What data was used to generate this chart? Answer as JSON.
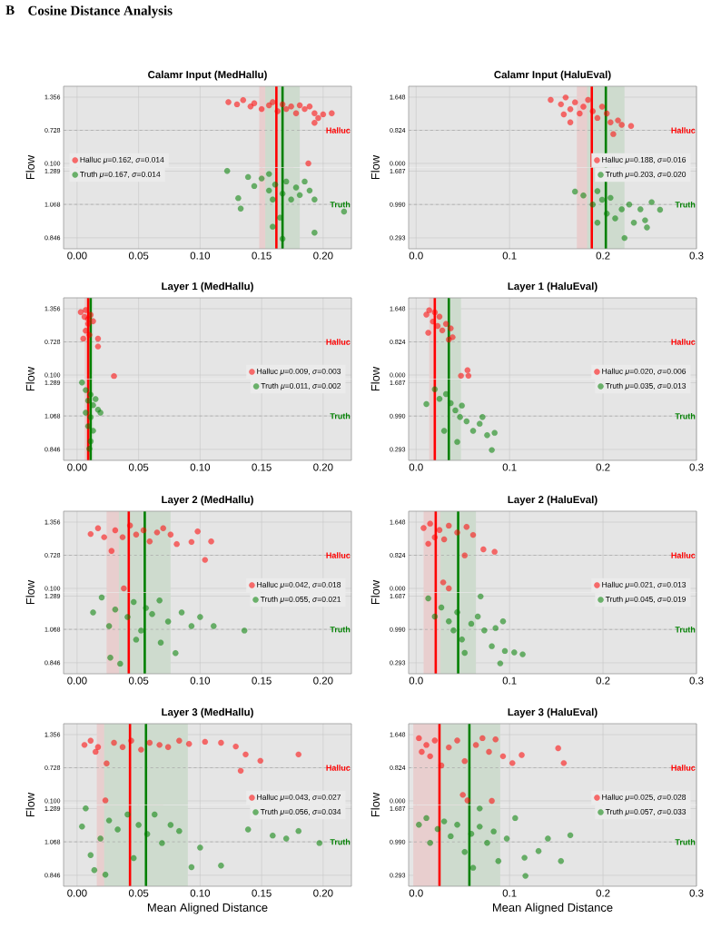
{
  "chart_data": [
    {
      "type": "scatter",
      "title": "Calamr Input (MedHallu)",
      "ylabel": "Flow",
      "annotations": [
        "B",
        "Cosine Distance Analysis"
      ],
      "series": [
        {
          "name": "Halluc *μ*=0.162, *σ*=0.014",
          "color": "#ff0000",
          "x": [
            0.123,
            0.13,
            0.135,
            0.141,
            0.144,
            0.15,
            0.156,
            0.159,
            0.163,
            0.167,
            0.17,
            0.174,
            0.178,
            0.181,
            0.185,
            0.189,
            0.193,
            0.196,
            0.2,
            0.207,
            0.193,
            0.188
          ],
          "values": [
            1.26,
            1.22,
            1.3,
            1.18,
            1.24,
            1.13,
            1.2,
            1.26,
            1.09,
            1.22,
            1.13,
            1.18,
            1.05,
            1.2,
            1.13,
            1.18,
            1.05,
            0.96,
            1.03,
            1.05,
            0.87,
            0.1
          ]
        }
      ],
      "xlim": [
        -0.011,
        0.223
      ],
      "ylim": [
        0.023,
        1.562
      ],
      "tick_labels": "y",
      "xticks": [
        0,
        0.05,
        0.1,
        0.15,
        0.2
      ],
      "yticks": [
        1.356,
        0.728,
        {
          "value": 0.1,
          "label": "0.100"
        }
      ],
      "bands": [
        {
          "axis": "x",
          "from": 0.148,
          "to": 0.176,
          "color": "#e8cece"
        },
        {
          "axis": "x",
          "from": 0.153,
          "to": 0.181,
          "color": "#cedbce"
        }
      ],
      "ref_lines": [
        {
          "axis": "y",
          "value": 0.728,
          "label": "Halluc",
          "line_style": "dashed"
        },
        {
          "axis": "x",
          "value": 0.167,
          "color": "#008000"
        },
        {
          "axis": "x",
          "value": 0.162,
          "color": "#ff0000"
        }
      ],
      "legend": "bottom left",
      "grid": true,
      "marker": "circle"
    },
    {
      "type": "scatter",
      "series": [
        {
          "name": "Truth *μ*=0.167, *σ*=0.014",
          "color": "#008000",
          "x": [
            0.122,
            0.131,
            0.133,
            0.139,
            0.144,
            0.15,
            0.156,
            0.159,
            0.161,
            0.165,
            0.167,
            0.17,
            0.174,
            0.178,
            0.181,
            0.185,
            0.189,
            0.193,
            0.193,
            0.159,
            0.167,
            0.217,
            0.156
          ],
          "values": [
            1.29,
            1.11,
            1.04,
            1.25,
            1.19,
            1.24,
            1.16,
            1.1,
            1.2,
            0.98,
            1.14,
            1.22,
            1.1,
            1.18,
            1.13,
            1.22,
            1.16,
            1.1,
            0.88,
            0.92,
            0.84,
            1.02,
            1.27
          ]
        }
      ],
      "xlim": [
        -0.011,
        0.223
      ],
      "ylim": [
        0.773,
        1.313
      ],
      "xticks": [
        {
          "value": 0,
          "label": "0.00"
        },
        0.05,
        {
          "value": 0.1,
          "label": "0.10"
        },
        0.15,
        {
          "value": 0.2,
          "label": "0.20"
        }
      ],
      "yticks": [
        1.289,
        1.068,
        0.846
      ],
      "bands": [
        {
          "axis": "x",
          "from": 0.148,
          "to": 0.176,
          "color": "#e8cece"
        },
        {
          "axis": "x",
          "from": 0.153,
          "to": 0.181,
          "color": "#cedbce"
        }
      ],
      "ref_lines": [
        {
          "axis": "y",
          "value": 1.068,
          "label": "Truth",
          "line_style": "dashed"
        },
        {
          "axis": "x",
          "value": 0.167,
          "color": "#008000"
        },
        {
          "axis": "x",
          "value": 0.162,
          "color": "#ff0000"
        }
      ],
      "legend": "top left",
      "grid": true,
      "marker": "circle"
    },
    {
      "type": "scatter",
      "title": "Calamr Input (HaluEval)",
      "ylabel": "Flow",
      "series": [
        {
          "name": "Halluc *μ*=0.188, *σ*=0.016",
          "color": "#ff0000",
          "x": [
            0.144,
            0.155,
            0.16,
            0.165,
            0.17,
            0.175,
            0.179,
            0.184,
            0.189,
            0.194,
            0.199,
            0.204,
            0.208,
            0.211,
            0.216,
            0.22,
            0.23,
            0.165,
            0.158
          ],
          "values": [
            1.58,
            1.47,
            1.64,
            1.35,
            1.52,
            1.24,
            1.41,
            1.58,
            1.3,
            1.13,
            1.41,
            1.24,
            1.02,
            0.73,
            1.07,
            0.96,
            0.93,
            1.02,
            1.22
          ]
        }
      ],
      "xlim": [
        -0.008,
        0.3
      ],
      "ylim": [
        -0.102,
        1.919
      ],
      "tick_labels": "y",
      "xticks": [
        0,
        0.1,
        0.2,
        0.3
      ],
      "yticks": [
        1.648,
        0.824,
        {
          "value": 0,
          "label": "0.000"
        }
      ],
      "bands": [
        {
          "axis": "x",
          "from": 0.172,
          "to": 0.204,
          "color": "#e8cece"
        },
        {
          "axis": "x",
          "from": 0.183,
          "to": 0.223,
          "color": "#cedbce"
        }
      ],
      "ref_lines": [
        {
          "axis": "y",
          "value": 0.824,
          "label": "Halluc",
          "line_style": "dashed"
        },
        {
          "axis": "x",
          "value": 0.203,
          "color": "#008000"
        },
        {
          "axis": "x",
          "value": 0.188,
          "color": "#ff0000"
        }
      ],
      "legend": "bottom right",
      "grid": true,
      "marker": "circle"
    },
    {
      "type": "scatter",
      "series": [
        {
          "name": "Truth *μ*=0.203, *σ*=0.020",
          "color": "#008000",
          "x": [
            0.17,
            0.179,
            0.189,
            0.194,
            0.199,
            0.204,
            0.208,
            0.213,
            0.22,
            0.228,
            0.233,
            0.24,
            0.245,
            0.247,
            0.252,
            0.261,
            0.223,
            0.194
          ],
          "values": [
            1.26,
            1.18,
            0.99,
            1.27,
            1.09,
            0.8,
            1.13,
            0.7,
            0.89,
            0.99,
            0.61,
            0.89,
            0.66,
            0.51,
            1.04,
            0.88,
            0.29,
            0.61
          ]
        }
      ],
      "xlim": [
        -0.008,
        0.3
      ],
      "ylim": [
        0.064,
        1.763
      ],
      "xticks": [
        {
          "value": 0,
          "label": "0.0"
        },
        0.1,
        0.2,
        0.3
      ],
      "yticks": [
        1.687,
        {
          "value": 0.99,
          "label": "0.990"
        },
        0.293
      ],
      "bands": [
        {
          "axis": "x",
          "from": 0.172,
          "to": 0.204,
          "color": "#e8cece"
        },
        {
          "axis": "x",
          "from": 0.183,
          "to": 0.223,
          "color": "#cedbce"
        }
      ],
      "ref_lines": [
        {
          "axis": "y",
          "value": 0.99,
          "label": "Truth",
          "line_style": "dashed"
        },
        {
          "axis": "x",
          "value": 0.203,
          "color": "#008000"
        },
        {
          "axis": "x",
          "value": 0.188,
          "color": "#ff0000"
        }
      ],
      "legend": "top right",
      "grid": true,
      "marker": "circle"
    },
    {
      "type": "scatter",
      "title": "Layer 1 (MedHallu)",
      "ylabel": "Flow",
      "series": [
        {
          "name": "Halluc *μ*=0.009, *σ*=0.003",
          "color": "#ff0000",
          "x": [
            0.003,
            0.006,
            0.007,
            0.009,
            0.011,
            0.013,
            0.007,
            0.01,
            0.005,
            0.009,
            0.017,
            0.017,
            0.03
          ],
          "values": [
            1.29,
            1.2,
            1.33,
            1.07,
            1.24,
            1.12,
            0.94,
            0.86,
            0.79,
            1.16,
            0.79,
            0.64,
            0.08
          ]
        }
      ],
      "xlim": [
        -0.011,
        0.223
      ],
      "ylim": [
        0.023,
        1.562
      ],
      "tick_labels": "y",
      "xticks": [
        0,
        0.05,
        0.1,
        0.15,
        0.2
      ],
      "yticks": [
        1.356,
        0.728,
        {
          "value": 0.1,
          "label": "0.100"
        }
      ],
      "bands": [
        {
          "axis": "x",
          "from": 0.006,
          "to": 0.012,
          "color": "#e8cece"
        },
        {
          "axis": "x",
          "from": 0.009,
          "to": 0.013,
          "color": "#cedbce"
        }
      ],
      "ref_lines": [
        {
          "axis": "y",
          "value": 0.728,
          "label": "Halluc",
          "line_style": "dashed"
        },
        {
          "axis": "x",
          "value": 0.011,
          "color": "#008000"
        },
        {
          "axis": "x",
          "value": 0.009,
          "color": "#ff0000"
        }
      ],
      "legend": "bottom right",
      "grid": true,
      "marker": "circle"
    },
    {
      "type": "scatter",
      "series": [
        {
          "name": "Truth *μ*=0.011, *σ*=0.002",
          "color": "#008000",
          "x": [
            0.004,
            0.007,
            0.011,
            0.009,
            0.013,
            0.015,
            0.007,
            0.019,
            0.011,
            0.009,
            0.013,
            0.011,
            0.01,
            0.017
          ],
          "values": [
            1.29,
            1.24,
            1.21,
            1.17,
            1.14,
            1.18,
            1.09,
            1.09,
            1.06,
            1.0,
            0.97,
            0.9,
            0.85,
            1.11
          ]
        }
      ],
      "xlim": [
        -0.011,
        0.223
      ],
      "ylim": [
        0.773,
        1.313
      ],
      "xticks": [
        {
          "value": 0,
          "label": "0.00"
        },
        0.05,
        {
          "value": 0.1,
          "label": "0.10"
        },
        0.15,
        {
          "value": 0.2,
          "label": "0.20"
        }
      ],
      "yticks": [
        1.289,
        1.068,
        0.846
      ],
      "bands": [
        {
          "axis": "x",
          "from": 0.006,
          "to": 0.012,
          "color": "#e8cece"
        },
        {
          "axis": "x",
          "from": 0.009,
          "to": 0.013,
          "color": "#cedbce"
        }
      ],
      "ref_lines": [
        {
          "axis": "y",
          "value": 1.068,
          "label": "Truth",
          "line_style": "dashed"
        },
        {
          "axis": "x",
          "value": 0.011,
          "color": "#008000"
        },
        {
          "axis": "x",
          "value": 0.009,
          "color": "#ff0000"
        }
      ],
      "legend": "top right",
      "grid": true,
      "marker": "circle"
    },
    {
      "type": "scatter",
      "title": "Layer 1 (HaluEval)",
      "ylabel": "Flow",
      "series": [
        {
          "name": "Halluc *μ*=0.020, *σ*=0.006",
          "color": "#ff0000",
          "x": [
            0.011,
            0.014,
            0.018,
            0.02,
            0.023,
            0.025,
            0.028,
            0.032,
            0.037,
            0.039,
            0.013,
            0.035,
            0.048,
            0.055,
            0.056
          ],
          "values": [
            1.5,
            1.61,
            1.33,
            1.56,
            1.22,
            1.45,
            1.11,
            1.27,
            1.16,
            0.94,
            1.05,
            0.88,
            -0.02,
            0.12,
            -0.02
          ]
        }
      ],
      "xlim": [
        -0.008,
        0.3
      ],
      "ylim": [
        -0.102,
        1.919
      ],
      "tick_labels": "y",
      "xticks": [
        0,
        0.1,
        0.2,
        0.3
      ],
      "yticks": [
        1.648,
        0.824,
        {
          "value": 0,
          "label": "0.000"
        }
      ],
      "bands": [
        {
          "axis": "x",
          "from": 0.014,
          "to": 0.026,
          "color": "#e8cece"
        },
        {
          "axis": "x",
          "from": 0.022,
          "to": 0.048,
          "color": "#cedbce"
        }
      ],
      "ref_lines": [
        {
          "axis": "y",
          "value": 0.824,
          "label": "Halluc",
          "line_style": "dashed"
        },
        {
          "axis": "x",
          "value": 0.035,
          "color": "#008000"
        },
        {
          "axis": "x",
          "value": 0.02,
          "color": "#ff0000"
        }
      ],
      "legend": "bottom right",
      "grid": true,
      "marker": "circle"
    },
    {
      "type": "scatter",
      "series": [
        {
          "name": "Truth *μ*=0.035, *σ*=0.013",
          "color": "#008000",
          "x": [
            0.011,
            0.02,
            0.025,
            0.032,
            0.037,
            0.042,
            0.047,
            0.049,
            0.054,
            0.061,
            0.068,
            0.071,
            0.076,
            0.081,
            0.084,
            0.03,
            0.044
          ],
          "values": [
            1.24,
            1.55,
            1.35,
            1.45,
            1.26,
            1.11,
            0.97,
            1.21,
            0.88,
            0.68,
            0.83,
            0.97,
            0.59,
            0.28,
            0.64,
            0.68,
            0.45
          ]
        }
      ],
      "xlim": [
        -0.008,
        0.3
      ],
      "ylim": [
        0.064,
        1.763
      ],
      "xticks": [
        {
          "value": 0,
          "label": "0.0"
        },
        0.1,
        0.2,
        0.3
      ],
      "yticks": [
        1.687,
        {
          "value": 0.99,
          "label": "0.990"
        },
        0.293
      ],
      "bands": [
        {
          "axis": "x",
          "from": 0.014,
          "to": 0.026,
          "color": "#e8cece"
        },
        {
          "axis": "x",
          "from": 0.022,
          "to": 0.048,
          "color": "#cedbce"
        }
      ],
      "ref_lines": [
        {
          "axis": "y",
          "value": 0.99,
          "label": "Truth",
          "line_style": "dashed"
        },
        {
          "axis": "x",
          "value": 0.035,
          "color": "#008000"
        },
        {
          "axis": "x",
          "value": 0.02,
          "color": "#ff0000"
        }
      ],
      "legend": "top right",
      "grid": true,
      "marker": "circle"
    },
    {
      "type": "scatter",
      "title": "Layer 2 (MedHallu)",
      "ylabel": "Flow",
      "series": [
        {
          "name": "Halluc *μ*=0.042, *σ*=0.018",
          "color": "#ff0000",
          "x": [
            0.011,
            0.017,
            0.022,
            0.028,
            0.031,
            0.037,
            0.043,
            0.048,
            0.054,
            0.059,
            0.065,
            0.07,
            0.076,
            0.081,
            0.093,
            0.098,
            0.109,
            0.104,
            0.038
          ],
          "values": [
            1.13,
            1.24,
            1.07,
            0.81,
            1.2,
            1.07,
            1.29,
            1.12,
            1.2,
            0.99,
            1.16,
            1.24,
            1.12,
            0.94,
            0.98,
            1.18,
            0.99,
            0.64,
            0.1
          ]
        }
      ],
      "xlim": [
        -0.011,
        0.223
      ],
      "ylim": [
        0.023,
        1.562
      ],
      "tick_labels": "y",
      "xticks": [
        0,
        0.05,
        0.1,
        0.15,
        0.2
      ],
      "yticks": [
        1.356,
        0.728,
        {
          "value": 0.1,
          "label": "0.100"
        }
      ],
      "bands": [
        {
          "axis": "x",
          "from": 0.024,
          "to": 0.06,
          "color": "#e8cece"
        },
        {
          "axis": "x",
          "from": 0.034,
          "to": 0.076,
          "color": "#cedbce"
        }
      ],
      "ref_lines": [
        {
          "axis": "y",
          "value": 0.728,
          "label": "Halluc",
          "line_style": "dashed"
        },
        {
          "axis": "x",
          "value": 0.055,
          "color": "#008000"
        },
        {
          "axis": "x",
          "value": 0.042,
          "color": "#ff0000"
        }
      ],
      "legend": "bottom right",
      "grid": true,
      "marker": "circle"
    },
    {
      "type": "scatter",
      "series": [
        {
          "name": "Truth *μ*=0.055, *σ*=0.021",
          "color": "#008000",
          "x": [
            0.013,
            0.02,
            0.026,
            0.027,
            0.031,
            0.035,
            0.041,
            0.046,
            0.052,
            0.056,
            0.061,
            0.067,
            0.068,
            0.074,
            0.08,
            0.085,
            0.093,
            0.1,
            0.111,
            0.136,
            0.048
          ],
          "values": [
            1.18,
            1.28,
            1.09,
            0.88,
            1.2,
            0.84,
            1.15,
            1.25,
            1.06,
            1.21,
            1.17,
            1.26,
            0.98,
            1.12,
            0.91,
            1.18,
            1.09,
            1.15,
            1.09,
            1.06,
            1.0
          ]
        }
      ],
      "xlim": [
        -0.011,
        0.223
      ],
      "ylim": [
        0.773,
        1.313
      ],
      "xticks": [
        {
          "value": 0,
          "label": "0.00"
        },
        0.05,
        {
          "value": 0.1,
          "label": "0.10"
        },
        0.15,
        {
          "value": 0.2,
          "label": "0.20"
        }
      ],
      "yticks": [
        1.289,
        1.068,
        0.846
      ],
      "bands": [
        {
          "axis": "x",
          "from": 0.024,
          "to": 0.06,
          "color": "#e8cece"
        },
        {
          "axis": "x",
          "from": 0.034,
          "to": 0.076,
          "color": "#cedbce"
        }
      ],
      "ref_lines": [
        {
          "axis": "y",
          "value": 1.068,
          "label": "Truth",
          "line_style": "dashed"
        },
        {
          "axis": "x",
          "value": 0.055,
          "color": "#008000"
        },
        {
          "axis": "x",
          "value": 0.042,
          "color": "#ff0000"
        }
      ],
      "legend": "top right",
      "grid": true,
      "marker": "circle"
    },
    {
      "type": "scatter",
      "title": "Layer 2 (HaluEval)",
      "ylabel": "Flow",
      "series": [
        {
          "name": "Halluc *μ*=0.021, *σ*=0.013",
          "color": "#ff0000",
          "x": [
            0.008,
            0.013,
            0.015,
            0.02,
            0.025,
            0.03,
            0.035,
            0.044,
            0.054,
            0.061,
            0.052,
            0.072,
            0.084,
            0.035,
            0.029
          ],
          "values": [
            1.5,
            1.11,
            1.61,
            1.27,
            1.45,
            1.22,
            1.56,
            1.39,
            1.53,
            1.33,
            0.82,
            0.97,
            0.91,
            0.0,
            0.15
          ]
        }
      ],
      "xlim": [
        -0.008,
        0.3
      ],
      "ylim": [
        -0.102,
        1.919
      ],
      "tick_labels": "y",
      "xticks": [
        0,
        0.1,
        0.2,
        0.3
      ],
      "yticks": [
        1.648,
        0.824,
        {
          "value": 0,
          "label": "0.000"
        }
      ],
      "bands": [
        {
          "axis": "x",
          "from": 0.008,
          "to": 0.034,
          "color": "#e8cece"
        },
        {
          "axis": "x",
          "from": 0.026,
          "to": 0.064,
          "color": "#cedbce"
        }
      ],
      "ref_lines": [
        {
          "axis": "y",
          "value": 0.824,
          "label": "Halluc",
          "line_style": "dashed"
        },
        {
          "axis": "x",
          "value": 0.045,
          "color": "#008000"
        },
        {
          "axis": "x",
          "value": 0.021,
          "color": "#ff0000"
        }
      ],
      "legend": "bottom right",
      "grid": true,
      "marker": "circle"
    },
    {
      "type": "scatter",
      "series": [
        {
          "name": "Truth *μ*=0.045, *σ*=0.019",
          "color": "#008000",
          "x": [
            0.013,
            0.02,
            0.027,
            0.035,
            0.04,
            0.044,
            0.049,
            0.052,
            0.059,
            0.066,
            0.069,
            0.073,
            0.081,
            0.085,
            0.093,
            0.095,
            0.105,
            0.114,
            0.09
          ],
          "values": [
            1.64,
            1.26,
            1.45,
            1.16,
            0.97,
            1.35,
            0.78,
            0.5,
            1.11,
            1.26,
            1.68,
            0.97,
            0.64,
            1.02,
            1.16,
            0.54,
            0.51,
            0.47,
            0.28
          ]
        }
      ],
      "xlim": [
        -0.008,
        0.3
      ],
      "ylim": [
        0.064,
        1.763
      ],
      "xticks": [
        {
          "value": 0,
          "label": "0.0"
        },
        0.1,
        0.2,
        0.3
      ],
      "yticks": [
        1.687,
        {
          "value": 0.99,
          "label": "0.990"
        },
        0.293
      ],
      "bands": [
        {
          "axis": "x",
          "from": 0.008,
          "to": 0.034,
          "color": "#e8cece"
        },
        {
          "axis": "x",
          "from": 0.026,
          "to": 0.064,
          "color": "#cedbce"
        }
      ],
      "ref_lines": [
        {
          "axis": "y",
          "value": 0.99,
          "label": "Truth",
          "line_style": "dashed"
        },
        {
          "axis": "x",
          "value": 0.045,
          "color": "#008000"
        },
        {
          "axis": "x",
          "value": 0.021,
          "color": "#ff0000"
        }
      ],
      "legend": "top right",
      "grid": true,
      "marker": "circle"
    },
    {
      "type": "scatter",
      "title": "Layer 3 (MedHallu)",
      "ylabel": "Flow",
      "series": [
        {
          "name": "Halluc *μ*=0.043, *σ*=0.027",
          "color": "#ff0000",
          "x": [
            0.006,
            0.011,
            0.015,
            0.017,
            0.024,
            0.03,
            0.037,
            0.044,
            0.052,
            0.059,
            0.067,
            0.074,
            0.083,
            0.091,
            0.104,
            0.117,
            0.129,
            0.137,
            0.133,
            0.149,
            0.18,
            0.023
          ],
          "values": [
            1.16,
            1.24,
            1.03,
            1.12,
            0.81,
            1.2,
            1.12,
            1.24,
            1.07,
            1.2,
            1.16,
            1.12,
            1.24,
            1.18,
            1.22,
            1.2,
            1.13,
            0.98,
            0.67,
            0.86,
            0.98,
            0.11
          ]
        }
      ],
      "xlim": [
        -0.011,
        0.223
      ],
      "ylim": [
        0.023,
        1.562
      ],
      "tick_labels": "y",
      "xticks": [
        0,
        0.05,
        0.1,
        0.15,
        0.2
      ],
      "yticks": [
        1.356,
        0.728,
        {
          "value": 0.1,
          "label": "0.100"
        }
      ],
      "bands": [
        {
          "axis": "x",
          "from": 0.016,
          "to": 0.07,
          "color": "#e8cece"
        },
        {
          "axis": "x",
          "from": 0.022,
          "to": 0.09,
          "color": "#cedbce"
        }
      ],
      "ref_lines": [
        {
          "axis": "y",
          "value": 0.728,
          "label": "Halluc",
          "line_style": "dashed"
        },
        {
          "axis": "x",
          "value": 0.056,
          "color": "#008000"
        },
        {
          "axis": "x",
          "value": 0.043,
          "color": "#ff0000"
        }
      ],
      "legend": "bottom right",
      "grid": true,
      "marker": "circle"
    },
    {
      "type": "scatter",
      "xlabel": "Mean Aligned Distance",
      "series": [
        {
          "name": "Truth *μ*=0.056, *σ*=0.034",
          "color": "#008000",
          "x": [
            0.004,
            0.007,
            0.011,
            0.014,
            0.019,
            0.023,
            0.026,
            0.033,
            0.041,
            0.046,
            0.05,
            0.057,
            0.063,
            0.069,
            0.076,
            0.083,
            0.093,
            0.1,
            0.117,
            0.139,
            0.159,
            0.17,
            0.18,
            0.197
          ],
          "values": [
            1.17,
            1.29,
            0.98,
            0.88,
            1.09,
            0.85,
            1.21,
            1.15,
            1.25,
            0.96,
            1.18,
            1.12,
            1.25,
            1.06,
            1.18,
            1.14,
            0.9,
            1.03,
            0.91,
            1.15,
            1.11,
            1.09,
            1.14,
            1.06
          ]
        }
      ],
      "xlim": [
        -0.011,
        0.223
      ],
      "ylim": [
        0.773,
        1.313
      ],
      "xticks": [
        {
          "value": 0,
          "label": "0.00"
        },
        0.05,
        {
          "value": 0.1,
          "label": "0.10"
        },
        0.15,
        {
          "value": 0.2,
          "label": "0.20"
        }
      ],
      "yticks": [
        1.289,
        1.068,
        0.846
      ],
      "bands": [
        {
          "axis": "x",
          "from": 0.016,
          "to": 0.07,
          "color": "#e8cece"
        },
        {
          "axis": "x",
          "from": 0.022,
          "to": 0.09,
          "color": "#cedbce"
        }
      ],
      "ref_lines": [
        {
          "axis": "y",
          "value": 1.068,
          "label": "Truth",
          "line_style": "dashed"
        },
        {
          "axis": "x",
          "value": 0.056,
          "color": "#008000"
        },
        {
          "axis": "x",
          "value": 0.043,
          "color": "#ff0000"
        }
      ],
      "legend": "top right",
      "grid": true,
      "marker": "circle"
    },
    {
      "type": "scatter",
      "title": "Layer 3 (HaluEval)",
      "ylabel": "Flow",
      "series": [
        {
          "name": "Halluc *μ*=0.025, *σ*=0.028",
          "color": "#ff0000",
          "x": [
            0.003,
            0.006,
            0.011,
            0.015,
            0.02,
            0.027,
            0.035,
            0.044,
            0.052,
            0.064,
            0.071,
            0.078,
            0.085,
            0.093,
            0.103,
            0.113,
            0.152,
            0.158,
            0.05,
            0.055,
            0.081
          ],
          "values": [
            1.56,
            1.22,
            1.39,
            1.11,
            1.5,
            0.88,
            1.33,
            1.5,
            0.99,
            1.39,
            1.56,
            1.22,
            1.53,
            1.11,
            0.94,
            1.14,
            1.31,
            0.94,
            0.15,
            0.01,
            0.0
          ]
        }
      ],
      "xlim": [
        -0.008,
        0.3
      ],
      "ylim": [
        -0.102,
        1.919
      ],
      "tick_labels": "y",
      "xticks": [
        0,
        0.1,
        0.2,
        0.3
      ],
      "yticks": [
        1.648,
        0.824,
        {
          "value": 0,
          "label": "0.000"
        }
      ],
      "bands": [
        {
          "axis": "x",
          "from": -0.003,
          "to": 0.053,
          "color": "#e8cece"
        },
        {
          "axis": "x",
          "from": 0.024,
          "to": 0.09,
          "color": "#cedbce"
        }
      ],
      "ref_lines": [
        {
          "axis": "y",
          "value": 0.824,
          "label": "Halluc",
          "line_style": "dashed"
        },
        {
          "axis": "x",
          "value": 0.057,
          "color": "#008000"
        },
        {
          "axis": "x",
          "value": 0.025,
          "color": "#ff0000"
        }
      ],
      "legend": "bottom right",
      "grid": true,
      "marker": "circle"
    },
    {
      "type": "scatter",
      "xlabel": "Mean Aligned Distance",
      "series": [
        {
          "name": "Truth *μ*=0.057, *σ*=0.033",
          "color": "#008000",
          "x": [
            0.003,
            0.011,
            0.015,
            0.023,
            0.03,
            0.037,
            0.044,
            0.052,
            0.059,
            0.061,
            0.068,
            0.076,
            0.083,
            0.088,
            0.097,
            0.106,
            0.116,
            0.117,
            0.131,
            0.141,
            0.155,
            0.165,
            0.068
          ],
          "values": [
            1.35,
            1.49,
            0.97,
            1.26,
            1.42,
            1.11,
            1.35,
            0.78,
            1.16,
            0.45,
            1.31,
            0.97,
            1.21,
            0.59,
            1.06,
            1.49,
            0.66,
            0.28,
            0.8,
            1.06,
            0.59,
            1.13,
            1.69
          ]
        }
      ],
      "xlim": [
        -0.008,
        0.3
      ],
      "ylim": [
        0.064,
        1.763
      ],
      "xticks": [
        {
          "value": 0,
          "label": "0.0"
        },
        0.1,
        0.2,
        0.3
      ],
      "yticks": [
        1.687,
        {
          "value": 0.99,
          "label": "0.990"
        },
        0.293
      ],
      "bands": [
        {
          "axis": "x",
          "from": -0.003,
          "to": 0.053,
          "color": "#e8cece"
        },
        {
          "axis": "x",
          "from": 0.024,
          "to": 0.09,
          "color": "#cedbce"
        }
      ],
      "ref_lines": [
        {
          "axis": "y",
          "value": 0.99,
          "label": "Truth",
          "line_style": "dashed"
        },
        {
          "axis": "x",
          "value": 0.057,
          "color": "#008000"
        },
        {
          "axis": "x",
          "value": 0.025,
          "color": "#ff0000"
        }
      ],
      "legend": "top right",
      "grid": true,
      "marker": "circle"
    }
  ]
}
